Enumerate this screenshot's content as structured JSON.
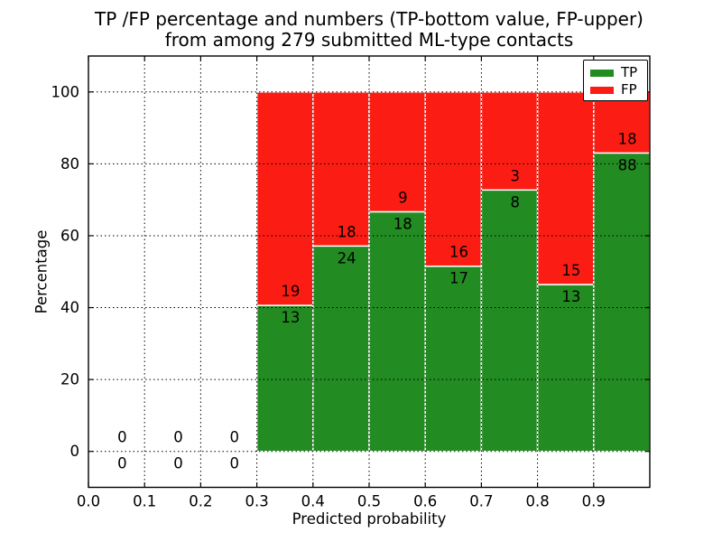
{
  "figure": {
    "title_line1": "TP /FP percentage and numbers (TP-bottom value, FP-upper)",
    "title_line2": "from among 279 submitted ML-type contacts",
    "background": "#ffffff"
  },
  "chart_data": {
    "type": "bar",
    "stacked": true,
    "normalized": "each non-empty bin scaled to 100%",
    "title": "TP /FP percentage and numbers (TP-bottom value, FP-upper) from among 279 submitted ML-type contacts",
    "xlabel": "Predicted probability",
    "ylabel": "Percentage",
    "xlim": [
      0.0,
      1.0
    ],
    "ylim": [
      -10,
      110
    ],
    "xticks": [
      0.0,
      0.1,
      0.2,
      0.3,
      0.4,
      0.5,
      0.6,
      0.7,
      0.8,
      0.9
    ],
    "xtick_labels": [
      "0.0",
      "0.1",
      "0.2",
      "0.3",
      "0.4",
      "0.5",
      "0.6",
      "0.7",
      "0.8",
      "0.9"
    ],
    "yticks": [
      0,
      20,
      40,
      60,
      80,
      100
    ],
    "grid": "dotted black, both axes",
    "bin_width": 0.1,
    "bin_starts": [
      0.0,
      0.1,
      0.2,
      0.3,
      0.4,
      0.5,
      0.6,
      0.7,
      0.8,
      0.9
    ],
    "series": [
      {
        "name": "TP",
        "color": "#228b22",
        "counts": [
          0,
          0,
          0,
          13,
          24,
          18,
          17,
          8,
          13,
          88
        ]
      },
      {
        "name": "FP",
        "color": "#fb1d14",
        "counts": [
          0,
          0,
          0,
          19,
          18,
          9,
          16,
          3,
          15,
          18
        ]
      }
    ],
    "tp_percent_per_bin": [
      null,
      null,
      null,
      40.6,
      57.1,
      66.7,
      51.5,
      72.7,
      46.4,
      83.0
    ],
    "total_contacts": 279,
    "count_label_x_offset": 0.06,
    "bar_edge_color": "#ffffff",
    "legend": {
      "position": "upper right",
      "entries": [
        {
          "label": "TP",
          "color": "#228b22"
        },
        {
          "label": "FP",
          "color": "#fb1d14"
        }
      ]
    }
  }
}
